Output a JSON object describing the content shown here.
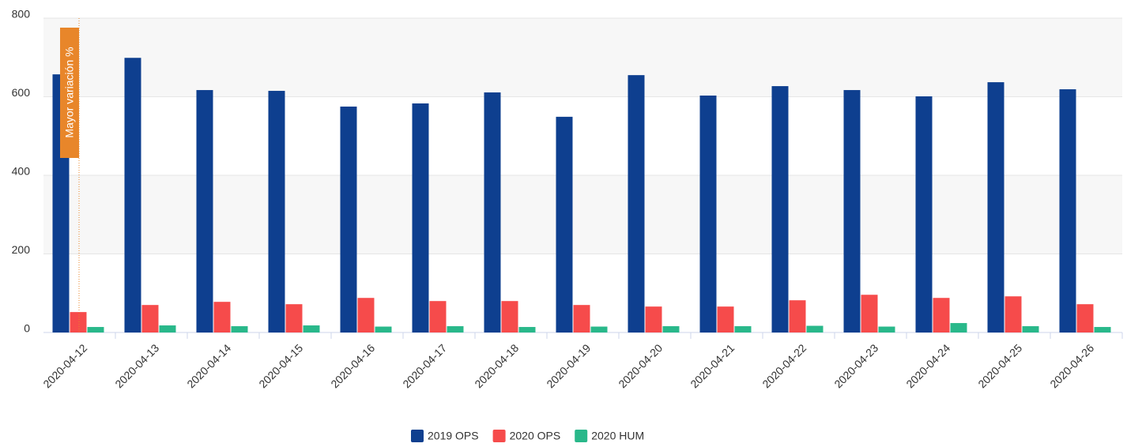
{
  "chart_data": {
    "type": "bar",
    "categories": [
      "2020-04-12",
      "2020-04-13",
      "2020-04-14",
      "2020-04-15",
      "2020-04-16",
      "2020-04-17",
      "2020-04-18",
      "2020-04-19",
      "2020-04-20",
      "2020-04-21",
      "2020-04-22",
      "2020-04-23",
      "2020-04-24",
      "2020-04-25",
      "2020-04-26"
    ],
    "series": [
      {
        "name": "2019 OPS",
        "color": "#0e3f8f",
        "values": [
          657,
          699,
          617,
          615,
          575,
          583,
          611,
          549,
          655,
          603,
          627,
          617,
          601,
          637,
          619
        ]
      },
      {
        "name": "2020 OPS",
        "color": "#f64b4b",
        "values": [
          52,
          70,
          78,
          72,
          88,
          80,
          80,
          70,
          66,
          66,
          82,
          96,
          88,
          92,
          72
        ]
      },
      {
        "name": "2020 HUM",
        "color": "#29b88a",
        "values": [
          14,
          18,
          16,
          18,
          15,
          16,
          14,
          15,
          16,
          16,
          17,
          15,
          24,
          16,
          14
        ]
      }
    ],
    "annotation": "Mayor variación %",
    "ylim": [
      0,
      800
    ],
    "yticks": [
      0,
      200,
      400,
      600,
      800
    ],
    "grid": true,
    "legend": "bottom"
  }
}
